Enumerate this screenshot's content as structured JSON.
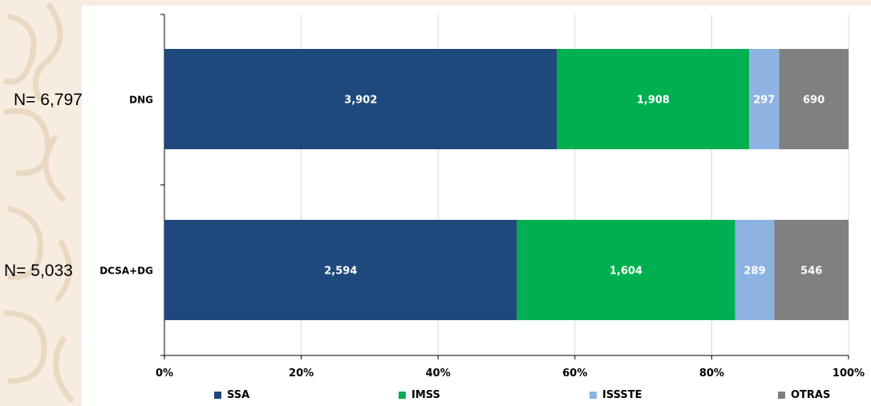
{
  "chart_data": {
    "type": "bar",
    "orientation": "horizontal",
    "stacked": "percent",
    "categories": [
      "DNG",
      "DCSA+DG"
    ],
    "totals_labels": [
      "N= 6,797",
      "N= 5,033"
    ],
    "series": [
      {
        "name": "SSA",
        "values": [
          3902,
          2594
        ],
        "labels": [
          "3,902",
          "2,594"
        ],
        "color": "#1f497d"
      },
      {
        "name": "IMSS",
        "values": [
          1908,
          1604
        ],
        "labels": [
          "1,908",
          "1,604"
        ],
        "color": "#00b050"
      },
      {
        "name": "ISSSTE",
        "values": [
          297,
          289
        ],
        "labels": [
          "297",
          "289"
        ],
        "color": "#8db3e2"
      },
      {
        "name": "OTRAS",
        "values": [
          690,
          546
        ],
        "labels": [
          "690",
          "546"
        ],
        "color": "#808080"
      }
    ],
    "x_ticks": [
      "0%",
      "20%",
      "40%",
      "60%",
      "80%",
      "100%"
    ],
    "xlim": [
      0,
      100
    ],
    "grid": "vertical",
    "legend_position": "bottom"
  }
}
